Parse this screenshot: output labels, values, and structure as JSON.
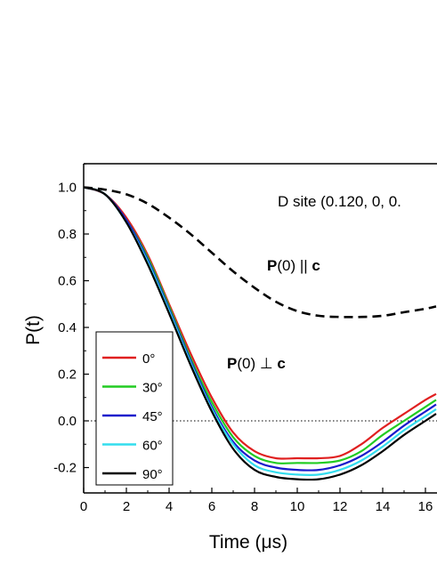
{
  "chart_data": {
    "type": "line",
    "xlabel_base": "Time (",
    "xlabel_unit": "μs",
    "xlabel_end": ")",
    "ylabel": "P(t)",
    "xlim": [
      0,
      16.5
    ],
    "ylim": [
      -0.3,
      1.1
    ],
    "x_ticks": [
      "0",
      "2",
      "4",
      "6",
      "8",
      "10",
      "12",
      "14",
      "16"
    ],
    "y_ticks": [
      "-0.2",
      "0.0",
      "0.2",
      "0.4",
      "0.6",
      "0.8",
      "1.0"
    ],
    "annotations": {
      "site": "D site (0.120, 0, 0.",
      "parallel_bold": "P",
      "parallel_rest": "(0) || ",
      "parallel_c": "c",
      "perp_bold": "P",
      "perp_rest": "(0) ⊥ ",
      "perp_c": "c"
    },
    "reference_line": {
      "y": 0.0,
      "style": "dotted"
    },
    "series": [
      {
        "name": "0°",
        "color": "#e02020",
        "style": "solid",
        "x": [
          0,
          1,
          2,
          3,
          4,
          5,
          6,
          7,
          8,
          9,
          10,
          11,
          12,
          13,
          14,
          15,
          16,
          16.5
        ],
        "y": [
          1.0,
          0.97,
          0.87,
          0.71,
          0.5,
          0.29,
          0.1,
          -0.05,
          -0.13,
          -0.16,
          -0.16,
          -0.16,
          -0.15,
          -0.1,
          -0.03,
          0.03,
          0.09,
          0.115
        ]
      },
      {
        "name": "30°",
        "color": "#22cc22",
        "style": "solid",
        "x": [
          0,
          1,
          2,
          3,
          4,
          5,
          6,
          7,
          8,
          9,
          10,
          11,
          12,
          13,
          14,
          15,
          16,
          16.5
        ],
        "y": [
          1.0,
          0.97,
          0.86,
          0.7,
          0.49,
          0.27,
          0.08,
          -0.07,
          -0.15,
          -0.18,
          -0.18,
          -0.18,
          -0.17,
          -0.13,
          -0.06,
          0.0,
          0.06,
          0.09
        ]
      },
      {
        "name": "45°",
        "color": "#1a1acc",
        "style": "solid",
        "x": [
          0,
          1,
          2,
          3,
          4,
          5,
          6,
          7,
          8,
          9,
          10,
          11,
          12,
          13,
          14,
          15,
          16,
          16.5
        ],
        "y": [
          1.0,
          0.97,
          0.86,
          0.69,
          0.48,
          0.26,
          0.06,
          -0.09,
          -0.17,
          -0.2,
          -0.21,
          -0.21,
          -0.19,
          -0.15,
          -0.09,
          -0.02,
          0.04,
          0.07
        ]
      },
      {
        "name": "60°",
        "color": "#33ddee",
        "style": "solid",
        "x": [
          0,
          1,
          2,
          3,
          4,
          5,
          6,
          7,
          8,
          9,
          10,
          11,
          12,
          13,
          14,
          15,
          16,
          16.5
        ],
        "y": [
          1.0,
          0.97,
          0.85,
          0.68,
          0.47,
          0.25,
          0.05,
          -0.1,
          -0.19,
          -0.22,
          -0.23,
          -0.23,
          -0.21,
          -0.17,
          -0.11,
          -0.04,
          0.02,
          0.05
        ]
      },
      {
        "name": "90°",
        "color": "#000000",
        "style": "solid",
        "x": [
          0,
          1,
          2,
          3,
          4,
          5,
          6,
          7,
          8,
          9,
          10,
          11,
          12,
          13,
          14,
          15,
          16,
          16.5
        ],
        "y": [
          1.0,
          0.97,
          0.85,
          0.67,
          0.46,
          0.24,
          0.04,
          -0.12,
          -0.21,
          -0.24,
          -0.25,
          -0.25,
          -0.23,
          -0.19,
          -0.13,
          -0.06,
          0.0,
          0.03
        ]
      },
      {
        "name": "",
        "color": "#000000",
        "style": "dashed",
        "x": [
          0,
          1,
          2,
          3,
          4,
          5,
          6,
          7,
          8,
          9,
          10,
          11,
          12,
          13,
          14,
          15,
          16,
          16.5
        ],
        "y": [
          1.0,
          0.99,
          0.97,
          0.93,
          0.87,
          0.8,
          0.72,
          0.64,
          0.57,
          0.51,
          0.47,
          0.45,
          0.445,
          0.445,
          0.45,
          0.465,
          0.48,
          0.49
        ]
      }
    ],
    "legend_position": "lower-left"
  }
}
